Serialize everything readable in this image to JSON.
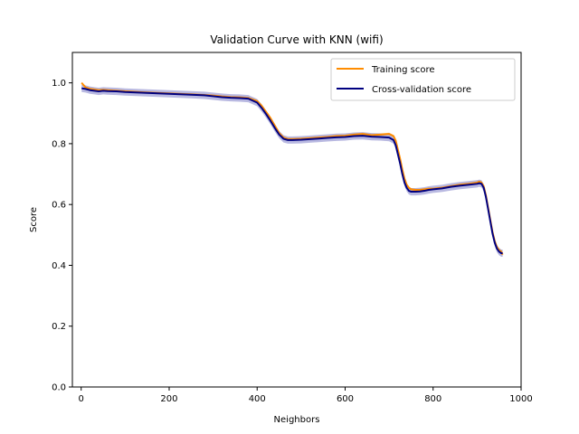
{
  "chart_data": {
    "type": "line",
    "title": "Validation Curve with KNN (wifi)",
    "xlabel": "Neighbors",
    "ylabel": "Score",
    "xlim": [
      -20,
      1000
    ],
    "ylim": [
      0.0,
      1.1
    ],
    "xticks": [
      0,
      200,
      400,
      600,
      800,
      1000
    ],
    "yticks": [
      0.0,
      0.2,
      0.4,
      0.6,
      0.8,
      1.0
    ],
    "xtick_labels": [
      "0",
      "200",
      "400",
      "600",
      "800",
      "1000"
    ],
    "ytick_labels": [
      "0.0",
      "0.2",
      "0.4",
      "0.6",
      "0.8",
      "1.0"
    ],
    "grid": false,
    "legend_position": "top-right",
    "band_color": "#8080c8",
    "series": [
      {
        "name": "Training score",
        "color": "#ff8c00",
        "x": [
          1,
          10,
          20,
          30,
          40,
          50,
          60,
          80,
          100,
          150,
          200,
          250,
          280,
          300,
          320,
          340,
          360,
          380,
          400,
          410,
          420,
          430,
          440,
          450,
          460,
          470,
          480,
          500,
          520,
          540,
          560,
          580,
          600,
          620,
          640,
          660,
          680,
          700,
          710,
          715,
          720,
          725,
          730,
          735,
          740,
          745,
          750,
          760,
          770,
          780,
          790,
          800,
          820,
          840,
          860,
          880,
          900,
          905,
          910,
          915,
          920,
          925,
          930,
          935,
          940,
          945,
          950,
          955,
          958
        ],
        "values": [
          1.0,
          0.985,
          0.98,
          0.978,
          0.976,
          0.977,
          0.976,
          0.974,
          0.972,
          0.968,
          0.965,
          0.962,
          0.96,
          0.958,
          0.955,
          0.953,
          0.952,
          0.95,
          0.94,
          0.925,
          0.905,
          0.885,
          0.86,
          0.835,
          0.82,
          0.815,
          0.815,
          0.816,
          0.818,
          0.82,
          0.822,
          0.825,
          0.826,
          0.83,
          0.832,
          0.828,
          0.83,
          0.832,
          0.825,
          0.81,
          0.78,
          0.75,
          0.715,
          0.685,
          0.665,
          0.655,
          0.65,
          0.648,
          0.648,
          0.65,
          0.652,
          0.652,
          0.655,
          0.66,
          0.665,
          0.668,
          0.672,
          0.675,
          0.672,
          0.66,
          0.63,
          0.59,
          0.55,
          0.51,
          0.48,
          0.46,
          0.45,
          0.445,
          0.435
        ]
      },
      {
        "name": "Cross-validation score",
        "color": "#000080",
        "x": [
          1,
          10,
          20,
          30,
          40,
          50,
          60,
          80,
          100,
          150,
          200,
          250,
          280,
          300,
          320,
          340,
          360,
          380,
          400,
          410,
          420,
          430,
          440,
          450,
          460,
          470,
          480,
          500,
          520,
          540,
          560,
          580,
          600,
          620,
          640,
          660,
          680,
          700,
          710,
          715,
          720,
          725,
          730,
          735,
          740,
          745,
          750,
          760,
          770,
          780,
          790,
          800,
          820,
          840,
          860,
          880,
          900,
          905,
          910,
          915,
          920,
          925,
          930,
          935,
          940,
          945,
          950,
          955,
          958
        ],
        "values": [
          0.982,
          0.98,
          0.976,
          0.974,
          0.972,
          0.974,
          0.973,
          0.972,
          0.97,
          0.967,
          0.964,
          0.961,
          0.959,
          0.956,
          0.953,
          0.951,
          0.95,
          0.948,
          0.935,
          0.918,
          0.898,
          0.876,
          0.852,
          0.83,
          0.816,
          0.812,
          0.812,
          0.813,
          0.815,
          0.817,
          0.819,
          0.821,
          0.822,
          0.825,
          0.826,
          0.823,
          0.822,
          0.82,
          0.812,
          0.795,
          0.765,
          0.735,
          0.7,
          0.672,
          0.655,
          0.645,
          0.642,
          0.642,
          0.643,
          0.645,
          0.648,
          0.65,
          0.653,
          0.658,
          0.662,
          0.665,
          0.668,
          0.67,
          0.668,
          0.655,
          0.625,
          0.585,
          0.545,
          0.505,
          0.475,
          0.455,
          0.445,
          0.44,
          0.44
        ]
      }
    ]
  }
}
